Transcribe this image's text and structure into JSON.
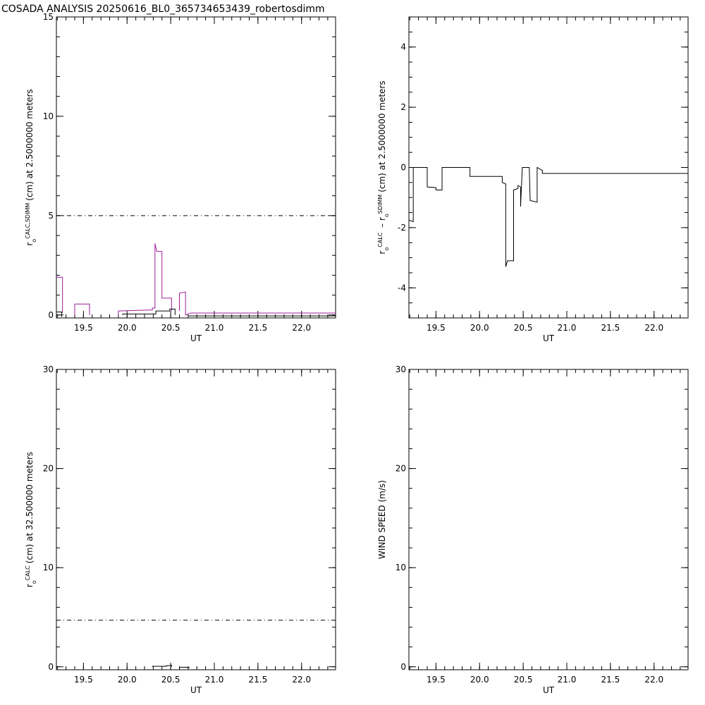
{
  "title": "COSADA ANALYSIS 20250616_BL0_365734653439_robertosdimm",
  "chart_data": [
    {
      "type": "line",
      "xlabel": "UT",
      "xlim": [
        19.19,
        22.39
      ],
      "xticks": [
        19.5,
        {
          "value": 20,
          "label": "20.0"
        },
        20.5,
        {
          "value": 21,
          "label": "21.0"
        },
        21.5,
        {
          "value": 22,
          "label": "22.0"
        }
      ],
      "ylim": [
        -0.15,
        15
      ],
      "yticks": [
        0,
        5,
        10,
        15
      ],
      "ylabel": [
        {
          "t": "r"
        },
        {
          "t": "o",
          "pos": "sub"
        },
        {
          "t": "CALC,SDIMM",
          "pos": "sup"
        },
        {
          "t": "(cm)  at  2.5000000 meters"
        }
      ],
      "series": [
        {
          "color": "#a01c9c",
          "x": [
            19.19,
            19.26,
            19.26,
            null,
            19.4,
            19.4,
            19.57,
            19.57,
            null,
            19.9,
            19.9,
            20.25,
            20.29,
            20.29,
            20.32,
            20.32,
            20.34,
            20.4,
            20.4,
            20.51,
            20.51,
            null,
            20.6,
            20.6,
            20.67,
            20.67,
            20.73,
            22.39
          ],
          "values": [
            1.9,
            1.9,
            0.1,
            null,
            0,
            0.55,
            0.55,
            0,
            null,
            0,
            0.2,
            0.25,
            0.25,
            0.35,
            0.35,
            3.6,
            3.2,
            3.2,
            0.85,
            0.85,
            0.2,
            null,
            0.2,
            1.1,
            1.15,
            0,
            0.1,
            0.1
          ]
        },
        {
          "color": "#000000",
          "x": [
            19.19,
            19.25,
            19.25,
            null,
            19.95,
            19.95,
            20.33,
            20.33,
            20.49,
            20.49,
            20.55,
            20.55,
            null,
            20.7,
            22.39
          ],
          "values": [
            0.15,
            0.15,
            -0.1,
            null,
            0,
            0.05,
            0.05,
            0.2,
            0.2,
            0.3,
            0.3,
            0,
            null,
            -0.05,
            -0.05
          ]
        },
        {
          "color": "#000000",
          "dash": true,
          "x": [
            19.19,
            22.39
          ],
          "values": [
            5,
            5
          ]
        }
      ]
    },
    {
      "type": "line",
      "xlabel": "UT",
      "xlim": [
        19.19,
        22.39
      ],
      "xticks": [
        19.5,
        {
          "value": 20,
          "label": "20.0"
        },
        20.5,
        {
          "value": 21,
          "label": "21.0"
        },
        21.5,
        {
          "value": 22,
          "label": "22.0"
        }
      ],
      "ylim": [
        -5,
        5
      ],
      "yticks": [
        -4,
        -2,
        0,
        2,
        4
      ],
      "ylabel": [
        {
          "t": "r"
        },
        {
          "t": "o",
          "pos": "sub"
        },
        {
          "t": "CALC",
          "pos": "sup"
        },
        {
          "t": " – r"
        },
        {
          "t": "o",
          "pos": "sub"
        },
        {
          "t": "SDIMM",
          "pos": "sup"
        },
        {
          "t": "(cm)  at  2.5000000 meters"
        }
      ],
      "series": [
        {
          "color": "#000000",
          "x": [
            19.19,
            19.24,
            19.24,
            19.4,
            19.4,
            19.5,
            19.5,
            19.57,
            19.57,
            19.89,
            19.89,
            20.26,
            20.26,
            20.3,
            20.3,
            20.32,
            20.39,
            20.39,
            20.44,
            20.44,
            20.47,
            20.47,
            20.49,
            20.57,
            20.58,
            20.66,
            20.66,
            20.72,
            20.72,
            21.56,
            22.39
          ],
          "values": [
            -1.75,
            -1.8,
            0,
            0,
            -0.65,
            -0.67,
            -0.75,
            -0.75,
            0,
            0,
            -0.3,
            -0.3,
            -0.5,
            -0.55,
            -3.3,
            -3.1,
            -3.1,
            -0.75,
            -0.7,
            -0.6,
            -0.65,
            -1.3,
            0,
            0,
            -1.1,
            -1.15,
            0,
            -0.1,
            -0.2,
            -0.2,
            -0.2
          ]
        }
      ]
    },
    {
      "type": "line",
      "xlabel": "UT",
      "xlim": [
        19.19,
        22.39
      ],
      "xticks": [
        19.5,
        {
          "value": 20,
          "label": "20.0"
        },
        20.5,
        {
          "value": 21,
          "label": "21.0"
        },
        21.5,
        {
          "value": 22,
          "label": "22.0"
        }
      ],
      "ylim": [
        -0.3,
        30
      ],
      "yticks": [
        0,
        10,
        20,
        30
      ],
      "ylabel": [
        {
          "t": "r"
        },
        {
          "t": "o",
          "pos": "sub"
        },
        {
          "t": "CALC",
          "pos": "sup"
        },
        {
          "t": "(cm)  at  32.500000 meters"
        }
      ],
      "series": [
        {
          "color": "#000000",
          "x": [
            20.29,
            20.29,
            20.45,
            20.45,
            20.51,
            20.51,
            null,
            20.6,
            20.6,
            20.69,
            20.72
          ],
          "values": [
            0,
            0.05,
            0.05,
            0.1,
            0.15,
            0,
            null,
            0,
            -0.05,
            -0.05,
            -0.1
          ]
        },
        {
          "color": "#000000",
          "dash": true,
          "x": [
            19.19,
            22.39
          ],
          "values": [
            4.7,
            4.7
          ]
        }
      ]
    },
    {
      "type": "line",
      "xlabel": "UT",
      "xlim": [
        19.19,
        22.39
      ],
      "xticks": [
        19.5,
        {
          "value": 20,
          "label": "20.0"
        },
        20.5,
        {
          "value": 21,
          "label": "21.0"
        },
        21.5,
        {
          "value": 22,
          "label": "22.0"
        }
      ],
      "ylim": [
        -0.3,
        30
      ],
      "yticks": [
        0,
        10,
        20,
        30
      ],
      "ylabel": [
        {
          "t": "WIND SPEED (m/s)"
        }
      ],
      "series": []
    }
  ]
}
